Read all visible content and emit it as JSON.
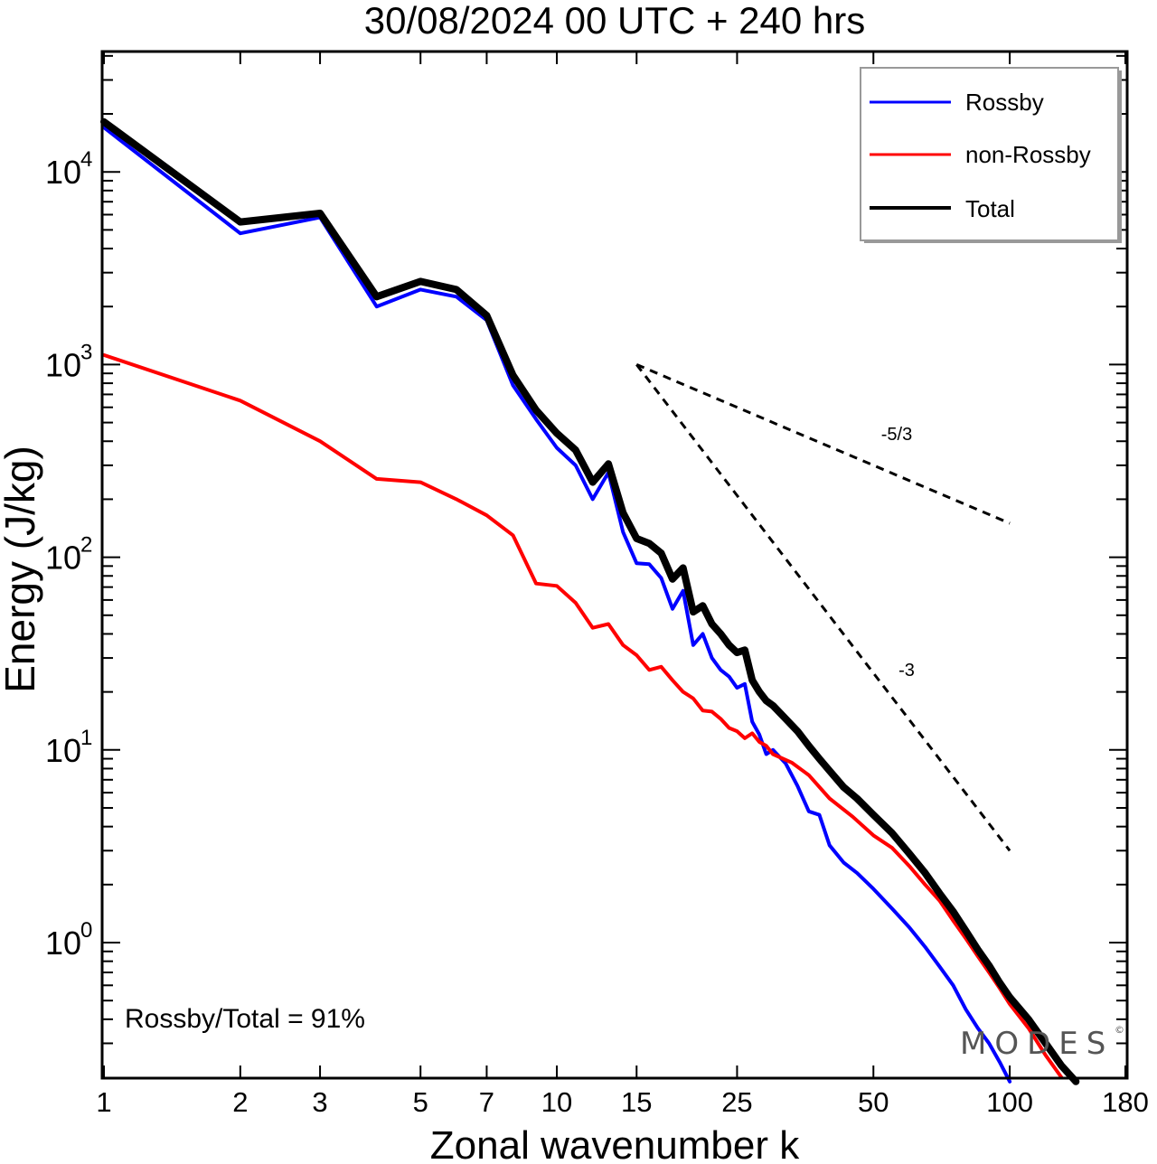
{
  "chart_data": {
    "type": "line",
    "title": "30/08/2024  00 UTC  + 240 hrs",
    "xlabel": "Zonal wavenumber k",
    "ylabel": "Energy (J/kg)",
    "xscale": "log",
    "yscale": "log",
    "xlim": [
      1,
      180
    ],
    "ylim": [
      0.2,
      35000
    ],
    "xticks": [
      {
        "value": 1,
        "label": "1"
      },
      {
        "value": 2,
        "label": "2"
      },
      {
        "value": 3,
        "label": "3"
      },
      {
        "value": 5,
        "label": "5"
      },
      {
        "value": 7,
        "label": "7"
      },
      {
        "value": 10,
        "label": "10"
      },
      {
        "value": 15,
        "label": "15"
      },
      {
        "value": 25,
        "label": "25"
      },
      {
        "value": 50,
        "label": "50"
      },
      {
        "value": 100,
        "label": "100"
      },
      {
        "value": 180,
        "label": "180"
      }
    ],
    "yticks": [
      {
        "value": 1,
        "base": "10",
        "exp": "0"
      },
      {
        "value": 10,
        "base": "10",
        "exp": "1"
      },
      {
        "value": 100,
        "base": "10",
        "exp": "2"
      },
      {
        "value": 1000,
        "base": "10",
        "exp": "3"
      },
      {
        "value": 10000,
        "base": "10",
        "exp": "4"
      }
    ],
    "legend": {
      "position": "top-right"
    },
    "series": [
      {
        "name": "Rossby",
        "color": "#0000ff",
        "points": [
          [
            1,
            17000
          ],
          [
            2,
            4800
          ],
          [
            3,
            5800
          ],
          [
            4,
            2000
          ],
          [
            5,
            2450
          ],
          [
            6,
            2250
          ],
          [
            7,
            1700
          ],
          [
            8,
            780
          ],
          [
            9,
            520
          ],
          [
            10,
            370
          ],
          [
            11,
            300
          ],
          [
            12,
            200
          ],
          [
            13,
            275
          ],
          [
            14,
            135
          ],
          [
            15,
            93
          ],
          [
            16,
            92
          ],
          [
            17,
            78
          ],
          [
            18,
            54
          ],
          [
            19,
            67
          ],
          [
            20,
            35
          ],
          [
            21,
            40
          ],
          [
            22,
            30
          ],
          [
            23,
            26
          ],
          [
            24,
            24
          ],
          [
            25,
            21
          ],
          [
            26,
            22
          ],
          [
            27,
            14
          ],
          [
            28,
            12
          ],
          [
            29,
            9.5
          ],
          [
            30,
            10
          ],
          [
            32,
            8.5
          ],
          [
            34,
            6.5
          ],
          [
            36,
            4.8
          ],
          [
            38,
            4.6
          ],
          [
            40,
            3.2
          ],
          [
            43,
            2.6
          ],
          [
            46,
            2.3
          ],
          [
            50,
            1.9
          ],
          [
            55,
            1.5
          ],
          [
            60,
            1.2
          ],
          [
            65,
            0.95
          ],
          [
            70,
            0.75
          ],
          [
            75,
            0.6
          ],
          [
            80,
            0.45
          ],
          [
            85,
            0.36
          ],
          [
            90,
            0.3
          ],
          [
            95,
            0.24
          ],
          [
            100,
            0.19
          ]
        ]
      },
      {
        "name": "non-Rossby",
        "color": "#ff0000",
        "points": [
          [
            1,
            1120
          ],
          [
            2,
            650
          ],
          [
            3,
            400
          ],
          [
            4,
            255
          ],
          [
            5,
            245
          ],
          [
            6,
            200
          ],
          [
            7,
            165
          ],
          [
            8,
            130
          ],
          [
            9,
            73
          ],
          [
            10,
            71
          ],
          [
            11,
            58
          ],
          [
            12,
            43
          ],
          [
            13,
            45
          ],
          [
            14,
            35
          ],
          [
            15,
            31
          ],
          [
            16,
            26
          ],
          [
            17,
            27
          ],
          [
            18,
            23
          ],
          [
            19,
            20
          ],
          [
            20,
            18.5
          ],
          [
            21,
            16
          ],
          [
            22,
            15.8
          ],
          [
            23,
            14.5
          ],
          [
            24,
            13
          ],
          [
            25,
            12.5
          ],
          [
            26,
            11.5
          ],
          [
            27,
            12.2
          ],
          [
            28,
            11
          ],
          [
            29,
            10.5
          ],
          [
            30,
            9.5
          ],
          [
            33,
            8.6
          ],
          [
            36,
            7.4
          ],
          [
            40,
            5.6
          ],
          [
            45,
            4.5
          ],
          [
            50,
            3.6
          ],
          [
            55,
            3.1
          ],
          [
            60,
            2.5
          ],
          [
            65,
            2.0
          ],
          [
            70,
            1.65
          ],
          [
            75,
            1.3
          ],
          [
            80,
            1.05
          ],
          [
            85,
            0.85
          ],
          [
            90,
            0.7
          ],
          [
            95,
            0.58
          ],
          [
            100,
            0.48
          ],
          [
            110,
            0.36
          ],
          [
            120,
            0.26
          ],
          [
            130,
            0.2
          ]
        ]
      },
      {
        "name": "Total",
        "color": "#000000",
        "points": [
          [
            1,
            18200
          ],
          [
            2,
            5500
          ],
          [
            3,
            6100
          ],
          [
            4,
            2250
          ],
          [
            5,
            2700
          ],
          [
            6,
            2450
          ],
          [
            7,
            1800
          ],
          [
            8,
            880
          ],
          [
            9,
            580
          ],
          [
            10,
            440
          ],
          [
            11,
            360
          ],
          [
            12,
            245
          ],
          [
            13,
            305
          ],
          [
            14,
            170
          ],
          [
            15,
            125
          ],
          [
            16,
            118
          ],
          [
            17,
            105
          ],
          [
            18,
            77
          ],
          [
            19,
            88
          ],
          [
            20,
            52
          ],
          [
            21,
            56
          ],
          [
            22,
            45
          ],
          [
            23,
            40
          ],
          [
            24,
            35
          ],
          [
            25,
            32
          ],
          [
            26,
            33
          ],
          [
            27,
            23
          ],
          [
            28,
            20
          ],
          [
            29,
            18
          ],
          [
            30,
            17
          ],
          [
            32,
            14.5
          ],
          [
            34,
            12.5
          ],
          [
            36,
            10.5
          ],
          [
            38,
            9.0
          ],
          [
            40,
            7.8
          ],
          [
            43,
            6.4
          ],
          [
            46,
            5.6
          ],
          [
            50,
            4.6
          ],
          [
            55,
            3.7
          ],
          [
            60,
            2.9
          ],
          [
            65,
            2.3
          ],
          [
            70,
            1.8
          ],
          [
            75,
            1.45
          ],
          [
            80,
            1.15
          ],
          [
            85,
            0.92
          ],
          [
            90,
            0.76
          ],
          [
            95,
            0.62
          ],
          [
            100,
            0.52
          ],
          [
            110,
            0.4
          ],
          [
            120,
            0.3
          ],
          [
            130,
            0.23
          ],
          [
            140,
            0.19
          ]
        ]
      }
    ],
    "reference_lines": [
      {
        "label": "-5/3",
        "points": [
          [
            15,
            1000
          ],
          [
            100,
            150
          ]
        ]
      },
      {
        "label": "-3",
        "points": [
          [
            15,
            1000
          ],
          [
            100,
            3.0
          ]
        ]
      }
    ],
    "annotations": {
      "ratio_text": "Rossby/Total = 91%",
      "watermark": "MODES"
    }
  }
}
